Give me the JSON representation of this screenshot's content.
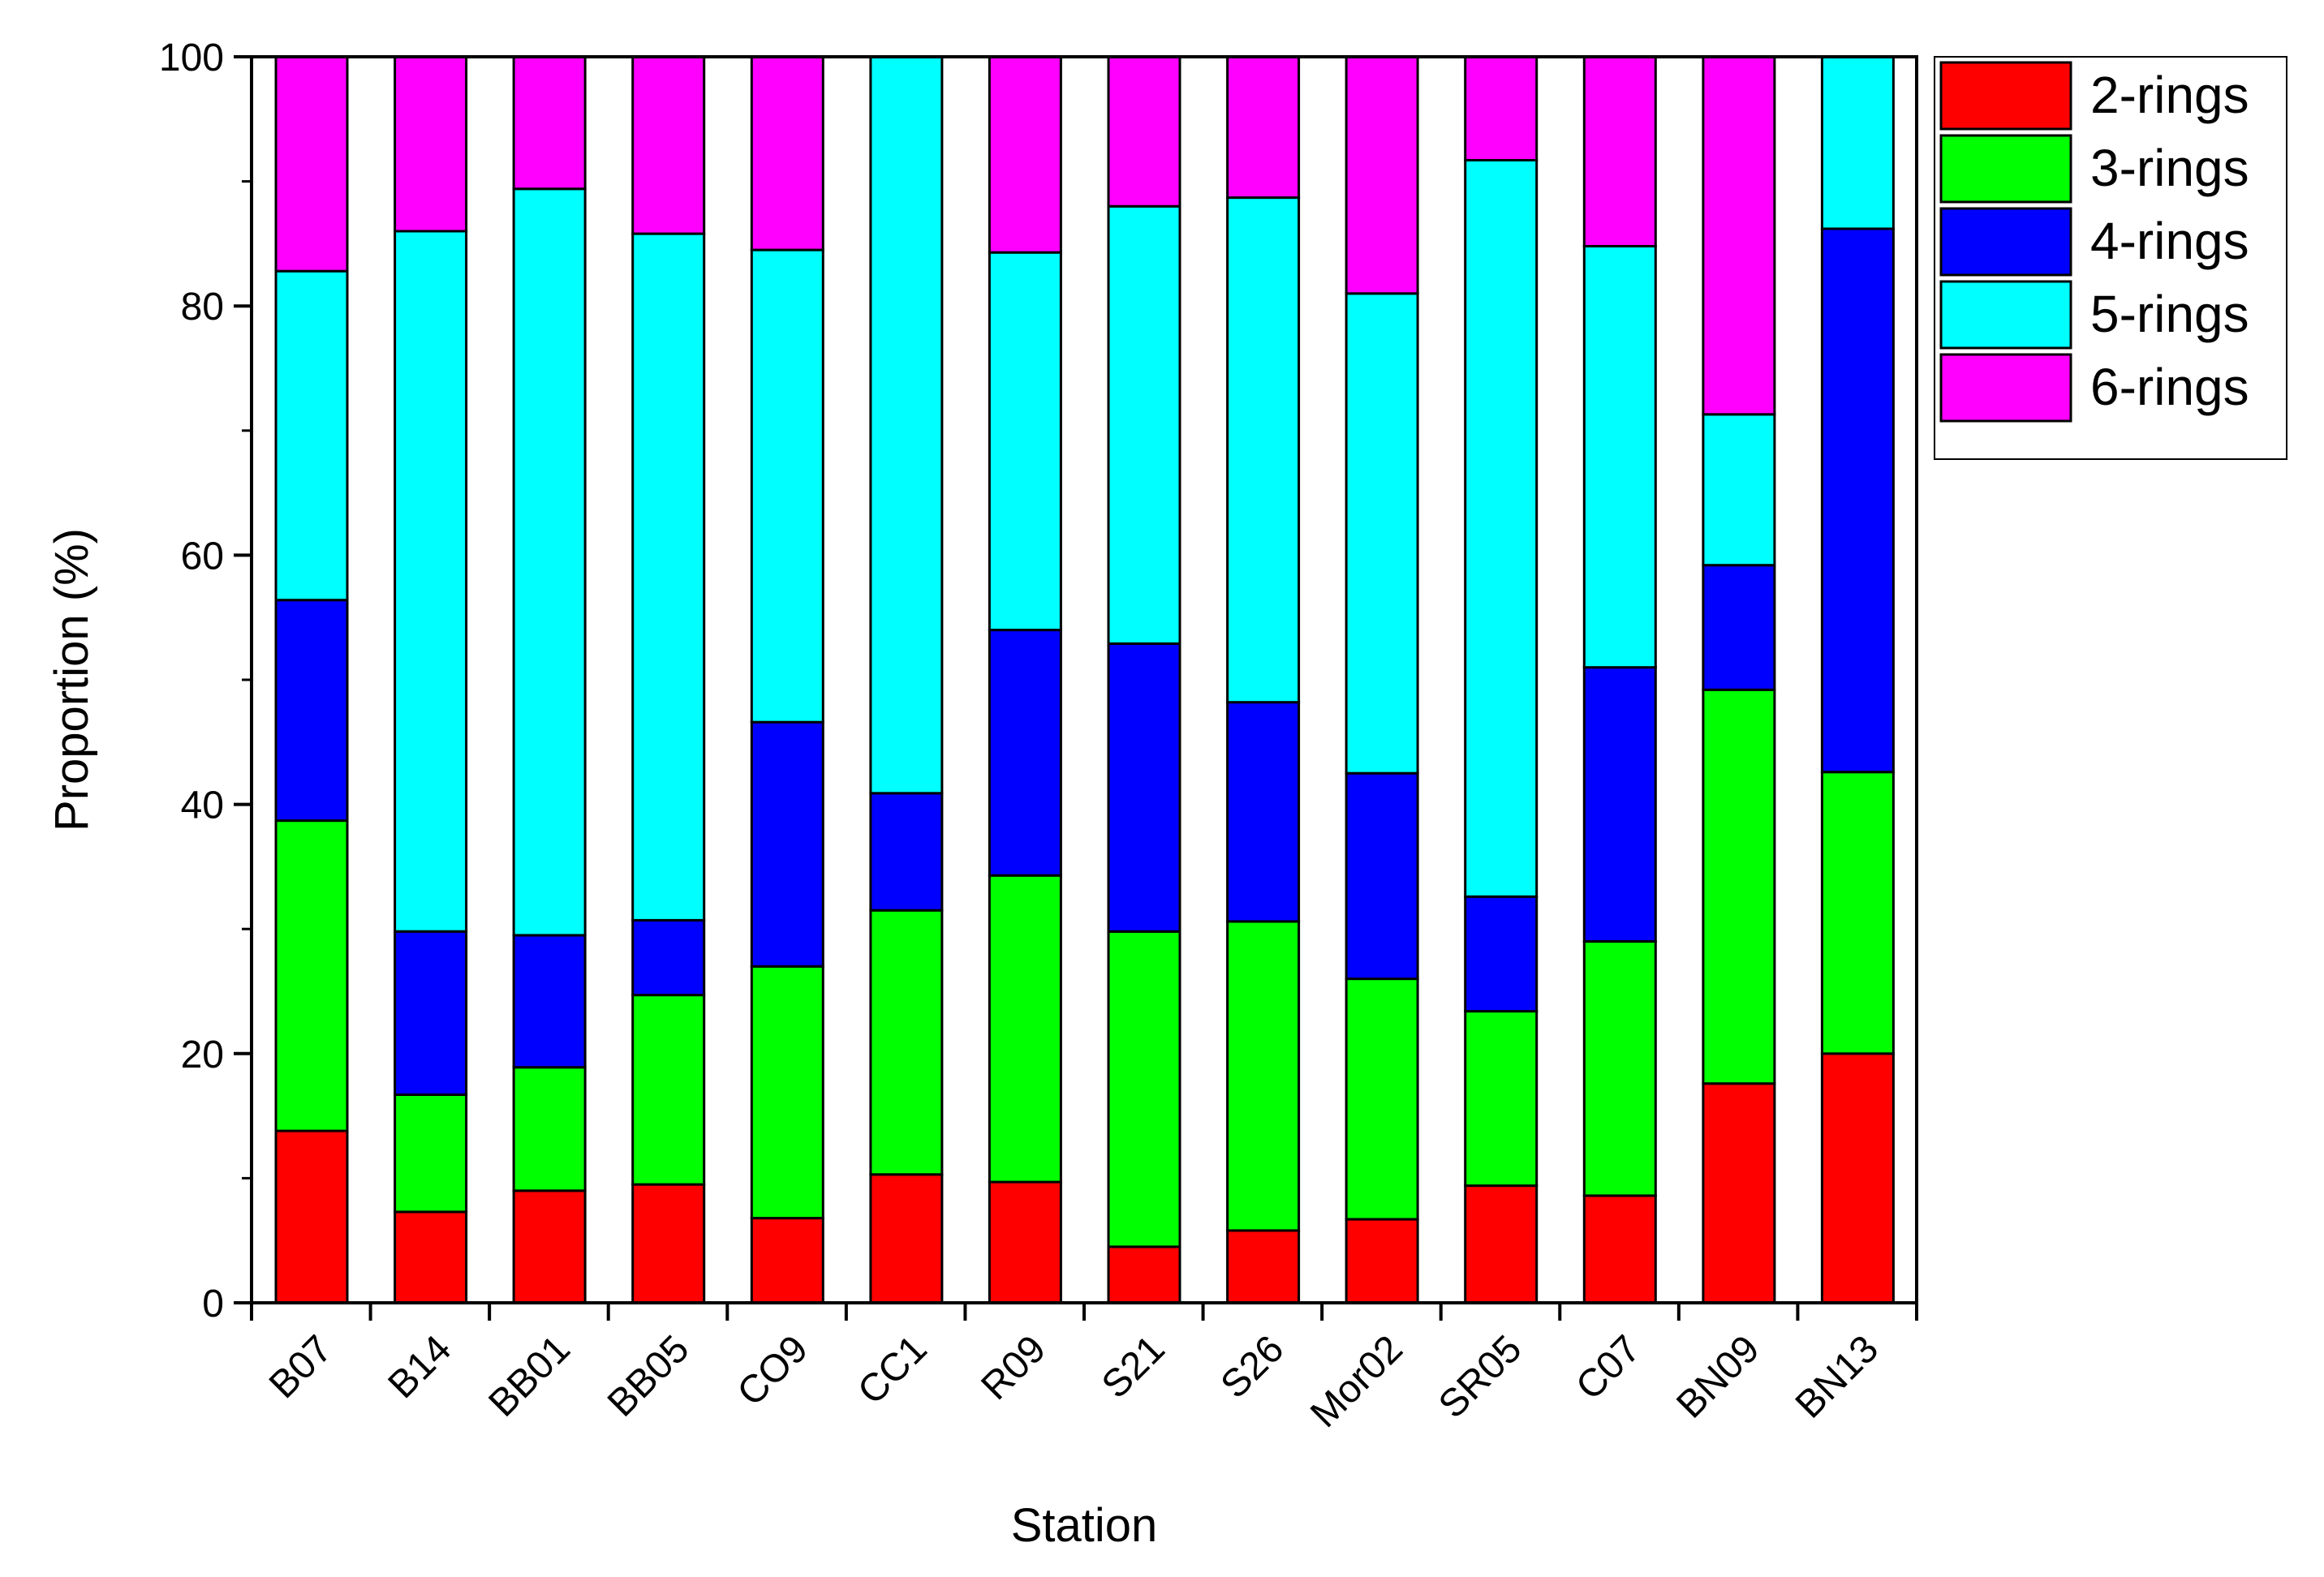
{
  "chart_data": {
    "type": "bar",
    "stacked": true,
    "title": "",
    "xlabel": "Station",
    "ylabel": "Proportion (%)",
    "ylim": [
      0,
      100
    ],
    "yticks": [
      0,
      20,
      40,
      60,
      80,
      100
    ],
    "grid": false,
    "legend_position": "top-right",
    "categories": [
      "B07",
      "B14",
      "BB01",
      "BB05",
      "CO9",
      "CC1",
      "R09",
      "S21",
      "S26",
      "Mor02",
      "SR05",
      "C07",
      "BN09",
      "BN13"
    ],
    "series": [
      {
        "name": "2-rings",
        "color": "#ff0000",
        "values": [
          13.8,
          7.3,
          9.0,
          9.5,
          6.8,
          10.3,
          9.7,
          4.5,
          5.8,
          6.7,
          9.4,
          8.6,
          17.6,
          20.0
        ]
      },
      {
        "name": "3-rings",
        "color": "#00ff00",
        "values": [
          24.9,
          9.4,
          9.9,
          15.2,
          20.2,
          21.2,
          24.6,
          25.3,
          24.8,
          19.3,
          14.0,
          20.4,
          31.6,
          22.6
        ]
      },
      {
        "name": "4-rings",
        "color": "#0000ff",
        "values": [
          17.7,
          13.1,
          10.6,
          6.0,
          19.6,
          9.4,
          19.7,
          23.1,
          17.6,
          16.5,
          9.2,
          22.0,
          10.0,
          43.6
        ]
      },
      {
        "name": "5-rings",
        "color": "#00ffff",
        "values": [
          26.4,
          56.2,
          59.9,
          55.1,
          37.9,
          59.1,
          30.3,
          35.1,
          40.5,
          38.5,
          59.1,
          33.8,
          12.1,
          13.8
        ]
      },
      {
        "name": "6-rings",
        "color": "#ff00ff",
        "values": [
          17.2,
          14.0,
          10.6,
          14.2,
          15.5,
          0.0,
          15.7,
          12.0,
          11.3,
          19.0,
          8.3,
          15.2,
          28.7,
          0.0
        ]
      }
    ]
  }
}
